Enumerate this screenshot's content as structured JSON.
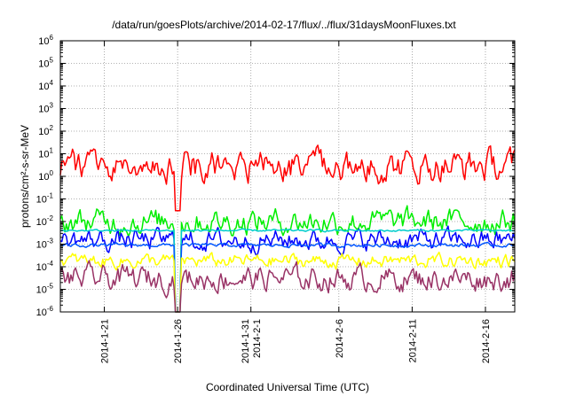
{
  "chart_data": {
    "type": "line",
    "title": "/data/run/goesPlots/archive/2014-02-17/flux/../flux/31daysMoonFluxes.txt",
    "xlabel": "Coordinated Universal Time (UTC)",
    "ylabel": "protons/cm²-s-sr-MeV",
    "yscale": "log",
    "ylim": [
      1e-06,
      1000000.0
    ],
    "xlim": [
      "2014-01-18",
      "2014-02-18"
    ],
    "grid": true,
    "y_ticks": [
      {
        "value": 1e-06,
        "base": "10",
        "exp": "-6"
      },
      {
        "value": 1e-05,
        "base": "10",
        "exp": "-5"
      },
      {
        "value": 0.0001,
        "base": "10",
        "exp": "-4"
      },
      {
        "value": 0.001,
        "base": "10",
        "exp": "-3"
      },
      {
        "value": 0.01,
        "base": "10",
        "exp": "-2"
      },
      {
        "value": 0.1,
        "base": "10",
        "exp": "-1"
      },
      {
        "value": 1,
        "base": "10",
        "exp": "0"
      },
      {
        "value": 10,
        "base": "10",
        "exp": "1"
      },
      {
        "value": 100,
        "base": "10",
        "exp": "2"
      },
      {
        "value": 1000,
        "base": "10",
        "exp": "3"
      },
      {
        "value": 10000,
        "base": "10",
        "exp": "4"
      },
      {
        "value": 100000,
        "base": "10",
        "exp": "5"
      },
      {
        "value": 1000000,
        "base": "10",
        "exp": "6"
      }
    ],
    "x_ticks": [
      {
        "date": "2014-01-21",
        "label": [
          "2014-1-21"
        ]
      },
      {
        "date": "2014-01-26",
        "label": [
          "2014-1-26"
        ]
      },
      {
        "date": "2014-01-31",
        "label": [
          "2014-1-31",
          "2014-2-1"
        ]
      },
      {
        "date": "2014-02-06",
        "label": [
          "2014-2-6"
        ]
      },
      {
        "date": "2014-02-11",
        "label": [
          "2014-2-11"
        ]
      },
      {
        "date": "2014-02-16",
        "label": [
          "2014-2-16"
        ]
      }
    ],
    "series": [
      {
        "color": "#ff0000",
        "base": 3.0,
        "spread": 0.45,
        "dip_min": 0.03,
        "values": []
      },
      {
        "color": "#00ee00",
        "base": 0.01,
        "spread": 0.35,
        "dip_min": 1e-06,
        "values": []
      },
      {
        "color": "#0000ff",
        "base": 0.0015,
        "spread": 0.3,
        "dip_min": 1e-06,
        "values": []
      },
      {
        "color": "#00cccc",
        "base": 0.004,
        "spread": 0.03,
        "dip_min": 1e-06,
        "values": []
      },
      {
        "color": "#0055ff",
        "base": 0.0009,
        "spread": 0.05,
        "dip_min": 1e-06,
        "values": []
      },
      {
        "color": "#ffff00",
        "base": 0.00018,
        "spread": 0.2,
        "dip_min": 1e-06,
        "values": []
      },
      {
        "color": "#993366",
        "base": 3e-05,
        "spread": 0.35,
        "dip_min": 1e-06,
        "values": []
      }
    ]
  }
}
